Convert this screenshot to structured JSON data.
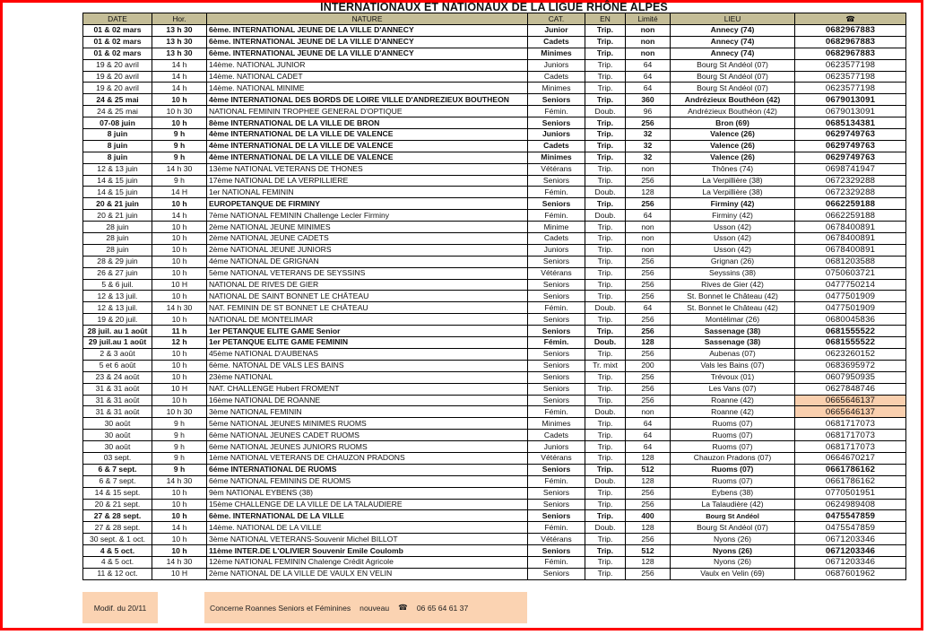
{
  "title": "INTERNATIONAUX ET NATIONAUX DE LA LIGUE RHÔNE ALPES",
  "colors": {
    "header_bg": "#c4bd97",
    "highlight": "#f9cfae",
    "border": "#ff0000",
    "footer_bg": "#fbd3b2"
  },
  "columns": [
    "DATE",
    "Hor.",
    "NATURE",
    "CAT.",
    "EN",
    "Limité",
    "LIEU",
    "☎"
  ],
  "phone_header_icon": "telephone-icon",
  "rows": [
    {
      "cells": [
        "01 & 02 mars",
        "13 h 30",
        "6ème. INTERNATIONAL JEUNE DE LA VILLE D'ANNECY",
        "Junior",
        "Trip.",
        "non",
        "Annecy (74)",
        "0682967883"
      ],
      "bold": true
    },
    {
      "cells": [
        "01 & 02 mars",
        "13 h 30",
        "6ème. INTERNATIONAL JEUNE DE LA VILLE D'ANNECY",
        "Cadets",
        "Trip.",
        "non",
        "Annecy (74)",
        "0682967883"
      ],
      "bold": true
    },
    {
      "cells": [
        "01 & 02 mars",
        "13 h 30",
        "6ème. INTERNATIONAL JEUNE DE LA VILLE D'ANNECY",
        "Minimes",
        "Trip.",
        "non",
        "Annecy (74)",
        "0682967883"
      ],
      "bold": true
    },
    {
      "cells": [
        "19 & 20 avril",
        "14 h",
        "14ème. NATIONAL JUNIOR",
        "Juniors",
        "Trip.",
        "64",
        "Bourg St Andéol (07)",
        "0623577198"
      ]
    },
    {
      "cells": [
        "19 & 20 avril",
        "14 h",
        "14ème. NATIONAL CADET",
        "Cadets",
        "Trip.",
        "64",
        "Bourg St Andéol (07)",
        "0623577198"
      ]
    },
    {
      "cells": [
        "19 & 20 avril",
        "14 h",
        "14ème. NATIONAL MINIME",
        "Minimes",
        "Trip.",
        "64",
        "Bourg St Andéol (07)",
        "0623577198"
      ]
    },
    {
      "cells": [
        "24 & 25 mai",
        "10 h",
        "4ème INTERNATIONAL DES BORDS DE LOIRE VILLE D'ANDREZIEUX BOUTHEON",
        "Seniors",
        "Trip.",
        "360",
        "Andrézieux Bouthéon (42)",
        "0679013091"
      ],
      "bold": true
    },
    {
      "cells": [
        "24 & 25 mai",
        "10 h 30",
        "NATIONAL FEMININ TROPHEE GENERAL D'OPTIQUE",
        "Fémin.",
        "Doub.",
        "96",
        "Andrézieux Bouthéon (42)",
        "0679013091"
      ]
    },
    {
      "cells": [
        "07-08 juin",
        "10 h",
        "8ème INTERNATIONAL DE LA VILLE DE BRON",
        "Seniors",
        "Trip.",
        "256",
        "Bron (69)",
        "0685134381"
      ],
      "bold": true
    },
    {
      "cells": [
        "8 juin",
        "9 h",
        "4ème INTERNATIONAL DE LA VILLE DE VALENCE",
        "Juniors",
        "Trip.",
        "32",
        "Valence (26)",
        "0629749763"
      ],
      "bold": true
    },
    {
      "cells": [
        "8 juin",
        "9 h",
        "4ème INTERNATIONAL DE LA VILLE DE VALENCE",
        "Cadets",
        "Trip.",
        "32",
        "Valence (26)",
        "0629749763"
      ],
      "bold": true
    },
    {
      "cells": [
        "8 juin",
        "9 h",
        "4ème INTERNATIONAL DE LA VILLE DE VALENCE",
        "Minimes",
        "Trip.",
        "32",
        "Valence (26)",
        "0629749763"
      ],
      "bold": true
    },
    {
      "cells": [
        "12 & 13 juin",
        "14 h 30",
        "13ème NATIONAL VETERANS DE THONES",
        "Vétérans",
        "Trip.",
        "non",
        "Thônes (74)",
        "0698741947"
      ]
    },
    {
      "cells": [
        "14 & 15 juin",
        "9 h",
        "17ème NATIONAL DE LA VERPILLIERE",
        "Seniors",
        "Trip.",
        "256",
        "La Verpillière (38)",
        "0672329288"
      ]
    },
    {
      "cells": [
        "14 & 15 juin",
        "14 H",
        "1er NATIONAL FEMININ",
        "Fémin.",
        "Doub.",
        "128",
        "La Verpillière (38)",
        "0672329288"
      ]
    },
    {
      "cells": [
        "20 & 21 juin",
        "10 h",
        "EUROPETANQUE DE FIRMINY",
        "Seniors",
        "Trip.",
        "256",
        "Firminy (42)",
        "0662259188"
      ],
      "bold": true
    },
    {
      "cells": [
        "20 & 21 juin",
        "14 h",
        "7ème NATIONAL FEMININ Challenge Lecler Firminy",
        "Fémin.",
        "Doub.",
        "64",
        "Firminy (42)",
        "0662259188"
      ]
    },
    {
      "cells": [
        "28 juin",
        "10 h",
        "2ème NATIONAL JEUNE MINIMES",
        "Minime",
        "Trip.",
        "non",
        "Usson (42)",
        "0678400891"
      ]
    },
    {
      "cells": [
        "28 juin",
        "10 h",
        "2ème NATIONAL JEUNE CADETS",
        "Cadets",
        "Trip.",
        "non",
        "Usson (42)",
        "0678400891"
      ]
    },
    {
      "cells": [
        "28 juin",
        "10 h",
        "2ème NATIONAL JEUNE JUNIORS",
        "Juniors",
        "Trip.",
        "non",
        "Usson (42)",
        "0678400891"
      ]
    },
    {
      "cells": [
        "28 & 29 juin",
        "10 h",
        "4éme NATIONAL DE GRIGNAN",
        "Seniors",
        "Trip.",
        "256",
        "Grignan (26)",
        "0681203588"
      ]
    },
    {
      "cells": [
        "26 & 27 juin",
        "10 h",
        "5ème NATIONAL VETERANS DE  SEYSSINS",
        "Vétérans",
        "Trip.",
        "256",
        "Seyssins (38)",
        "0750603721"
      ]
    },
    {
      "cells": [
        "5 & 6 juil.",
        "10 H",
        "NATIONAL DE RIVES DE GIER",
        "Seniors",
        "Trip.",
        "256",
        "Rives de Gier (42)",
        "0477750214"
      ]
    },
    {
      "cells": [
        "12 & 13 juil.",
        "10 h",
        "NATIONAL DE SAINT BONNET LE CHÂTEAU",
        "Seniors",
        "Trip.",
        "256",
        "St. Bonnet le Château (42)",
        "0477501909"
      ]
    },
    {
      "cells": [
        "12 & 13 juil.",
        "14 h 30",
        "NAT. FEMININ DE ST BONNET LE CHÂTEAU",
        "Fémin.",
        "Doub.",
        "64",
        "St. Bonnet le Château (42)",
        "0477501909"
      ]
    },
    {
      "cells": [
        "19 & 20 juil.",
        "10 h",
        "NATIONAL DE MONTELIMAR",
        "Seniors",
        "Trip.",
        "256",
        "Montélimar (26)",
        "0680045836"
      ]
    },
    {
      "cells": [
        "28 juil. au 1 août",
        "11 h",
        "1er PETANQUE ELITE GAME Senior",
        "Seniors",
        "Trip.",
        "256",
        "Sassenage (38)",
        "0681555522"
      ],
      "bold": true
    },
    {
      "cells": [
        "29 juil.au 1 août",
        "12 h",
        "1er PETANQUE ELITE GAME FEMININ",
        "Fémin.",
        "Doub.",
        "128",
        "Sassenage (38)",
        "0681555522"
      ],
      "bold": true
    },
    {
      "cells": [
        "2 & 3 août",
        "10 h",
        "45ème NATIONAL D'AUBENAS",
        "Seniors",
        "Trip.",
        "256",
        "Aubenas (07)",
        "0623260152"
      ]
    },
    {
      "cells": [
        "5 et 6 août",
        "10 h",
        "6ème. NATONAL  DE VALS  LES BAINS",
        "Seniors",
        "Tr. mixt",
        "200",
        "Vals les Bains (07)",
        "0683695972"
      ]
    },
    {
      "cells": [
        "23 & 24 août",
        "10 h",
        "23ème NATIONAL",
        "Seniors",
        "Trip.",
        "256",
        "Trévoux (01)",
        "0607950935"
      ]
    },
    {
      "cells": [
        "31 & 31 août",
        "10 H",
        "NAT. CHALLENGE Hubert FROMENT",
        "Seniors",
        "Trip.",
        "256",
        "Les Vans (07)",
        "0627848746"
      ]
    },
    {
      "cells": [
        "31 & 31 août",
        "10 h",
        "16ème NATIONAL DE ROANNE",
        "Seniors",
        "Trip.",
        "256",
        "Roanne (42)",
        "0665646137"
      ],
      "highlight_phone": true
    },
    {
      "cells": [
        "31 & 31 août",
        "10 h 30",
        "3ème NATIONAL FEMININ",
        "Fémin.",
        "Doub.",
        "non",
        "Roanne (42)",
        "0665646137"
      ],
      "highlight_phone": true
    },
    {
      "cells": [
        "30 août",
        "9 h",
        "5ème NATIONAL JEUNES MINIMES  RUOMS",
        "Minimes",
        "Trip.",
        "64",
        "Ruoms (07)",
        "0681717073"
      ]
    },
    {
      "cells": [
        "30 août",
        "9 h",
        "6ème NATIONAL JEUNES CADET  RUOMS",
        "Cadets",
        "Trip.",
        "64",
        "Ruoms (07)",
        "0681717073"
      ]
    },
    {
      "cells": [
        "30 août",
        "9 h",
        "6ème NATIONAL JEUNES JUNIORS  RUOMS",
        "Juniors",
        "Trip.",
        "64",
        "Ruoms (07)",
        "0681717073"
      ]
    },
    {
      "cells": [
        "03 sept.",
        "9 h",
        "1ème  NATIONAL VETERANS DE CHAUZON PRADONS",
        "Vétérans",
        "Trip.",
        "128",
        "Chauzon Pradons (07)",
        "0664670217"
      ]
    },
    {
      "cells": [
        "6 & 7 sept.",
        "9 h",
        "6éme INTERNATIONAL DE RUOMS",
        "Seniors",
        "Trip.",
        "512",
        "Ruoms (07)",
        "0661786162"
      ],
      "bold": true
    },
    {
      "cells": [
        "6 & 7 sept.",
        "14 h 30",
        "6éme NATIONAL FEMININS DE RUOMS",
        "Fémin.",
        "Doub.",
        "128",
        "Ruoms (07)",
        "0661786162"
      ]
    },
    {
      "cells": [
        "14 & 15 sept.",
        "10 h",
        " 9èm NATIONAL EYBENS (38)",
        "Seniors",
        "Trip.",
        "256",
        "Eybens (38)",
        "0770501951"
      ]
    },
    {
      "cells": [
        "20 & 21 sept.",
        "10 h",
        "15ème CHALLENGE DE LA VILLE DE LA TALAUDIERE",
        "Seniors",
        "Trip.",
        "256",
        "La Talaudière  (42)",
        "0624989408"
      ]
    },
    {
      "cells": [
        "27 & 28 sept.",
        "10 h",
        "6ème. INTERNATIONAL DE LA VILLE",
        "Seniors",
        "Trip.",
        "400",
        "Bourg St Andéol",
        "0475547859"
      ],
      "bold": true,
      "small_lieu": true
    },
    {
      "cells": [
        "27 & 28 sept.",
        "14 h",
        "14ème. NATIONAL DE LA VILLE",
        "Fémin.",
        "Doub.",
        "128",
        "Bourg St Andéol (07)",
        "0475547859"
      ]
    },
    {
      "cells": [
        "30 sept. & 1 oct.",
        "10 h",
        "3ème NATIONAL VETERANS-Souvenir Michel BILLOT",
        "Vétérans",
        "Trip.",
        "256",
        "Nyons (26)",
        "0671203346"
      ]
    },
    {
      "cells": [
        "4 & 5 oct.",
        "10 h",
        "11ème INTER.DE L'OLIVIER Souvenir Emile Coulomb",
        "Seniors",
        "Trip.",
        "512",
        "Nyons (26)",
        "0671203346"
      ],
      "bold": true
    },
    {
      "cells": [
        "4 & 5 oct.",
        "14 h 30",
        "12ème NATIONAL FEMININ  Chalenge Crédit Agricole",
        "Fémin.",
        "Trip.",
        "128",
        "Nyons (26)",
        "0671203346"
      ]
    },
    {
      "cells": [
        "11 & 12 oct.",
        "10 H",
        "2ème NATIONAL DE LA VILLE DE VAULX EN VELIN",
        "Seniors",
        "Trip.",
        "256",
        "Vaulx en Velin (69)",
        "0687601962"
      ]
    }
  ],
  "footer": {
    "modif": "Modif. du 20/11",
    "note": "Concerne Roannes Seniors et Féminines",
    "new_label": "nouveau",
    "phone_icon": "telephone-icon",
    "phone": "06 65 64 61 37"
  }
}
